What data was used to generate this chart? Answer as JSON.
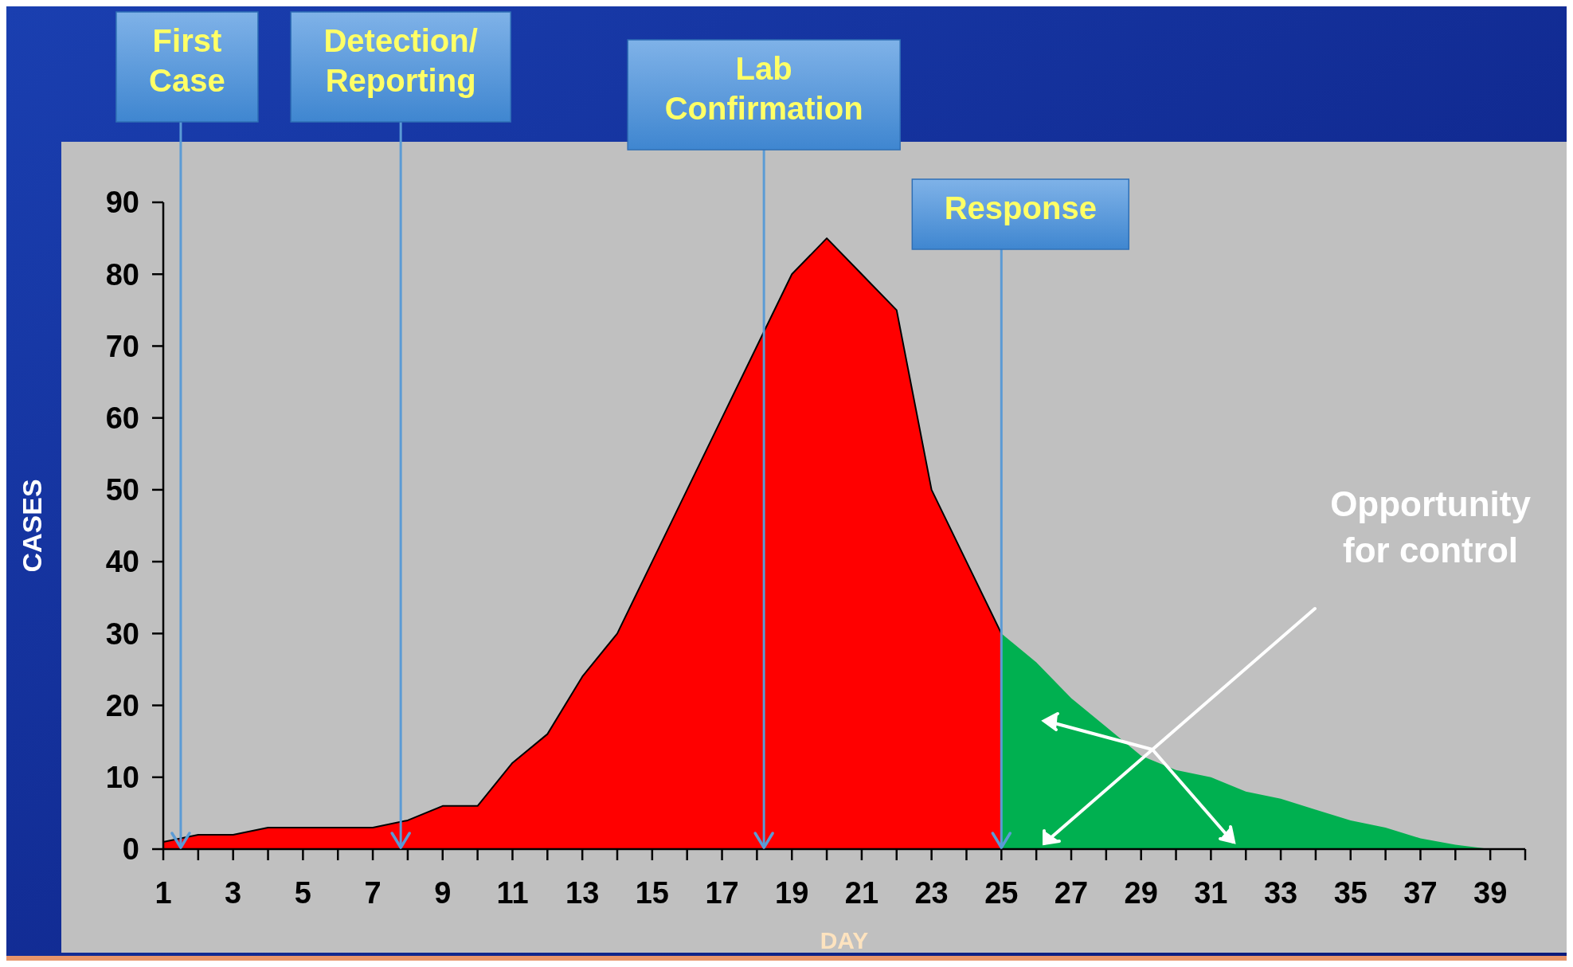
{
  "chart_data": {
    "type": "area",
    "xlabel": "DAY",
    "ylabel": "CASES",
    "xlim": [
      1,
      40
    ],
    "ylim": [
      0,
      90
    ],
    "xticks": [
      1,
      {
        "value": 2,
        "label": null
      },
      3,
      {
        "value": 4,
        "label": null
      },
      5,
      {
        "value": 6,
        "label": null
      },
      7,
      {
        "value": 8,
        "label": null
      },
      9,
      {
        "value": 10,
        "label": null
      },
      11,
      {
        "value": 12,
        "label": null
      },
      13,
      {
        "value": 14,
        "label": null
      },
      15,
      {
        "value": 16,
        "label": null
      },
      17,
      {
        "value": 18,
        "label": null
      },
      19,
      {
        "value": 20,
        "label": null
      },
      21,
      {
        "value": 22,
        "label": null
      },
      23,
      {
        "value": 24,
        "label": null
      },
      25,
      {
        "value": 26,
        "label": null
      },
      27,
      {
        "value": 28,
        "label": null
      },
      29,
      {
        "value": 30,
        "label": null
      },
      31,
      {
        "value": 32,
        "label": null
      },
      33,
      {
        "value": 34,
        "label": null
      },
      35,
      {
        "value": 36,
        "label": null
      },
      37,
      {
        "value": 38,
        "label": null
      },
      39,
      {
        "value": 40,
        "label": null
      }
    ],
    "yticks": [
      0,
      10,
      20,
      30,
      40,
      50,
      60,
      70,
      80,
      90
    ],
    "grid": false,
    "series": [
      {
        "color": "#ff0000",
        "x": [
          1,
          2,
          3,
          4,
          5,
          6,
          7,
          8,
          9,
          10,
          11,
          12,
          13,
          14,
          15,
          16,
          17,
          18,
          19,
          20,
          21,
          22,
          23,
          24,
          25
        ],
        "values": [
          1,
          2,
          2,
          3,
          3,
          3,
          3,
          4,
          6,
          6,
          12,
          16,
          24,
          30,
          40,
          50,
          60,
          70,
          80,
          85,
          80,
          75,
          50,
          40,
          30
        ]
      },
      {
        "color": "#00b050",
        "x": [
          25,
          26,
          27,
          28,
          29,
          30,
          31,
          32,
          33,
          34,
          35,
          36,
          37,
          38,
          39
        ],
        "values": [
          30,
          26,
          21,
          17,
          13,
          11,
          10,
          8,
          7,
          5.5,
          4,
          3,
          1.5,
          0.6,
          0
        ]
      }
    ],
    "ref_lines": [
      {
        "axis": "x",
        "value": 1.5,
        "label": "First Case",
        "color": "#5b9bd5"
      },
      {
        "axis": "x",
        "value": 7.8,
        "label": "Detection/ Reporting",
        "color": "#5b9bd5"
      },
      {
        "axis": "x",
        "value": 18.2,
        "label": "Lab Confirmation",
        "color": "#5b9bd5"
      },
      {
        "axis": "x",
        "value": 25,
        "label": "Response",
        "color": "#5b9bd5"
      }
    ],
    "annotations": [
      "Opportunity\nfor control"
    ]
  }
}
